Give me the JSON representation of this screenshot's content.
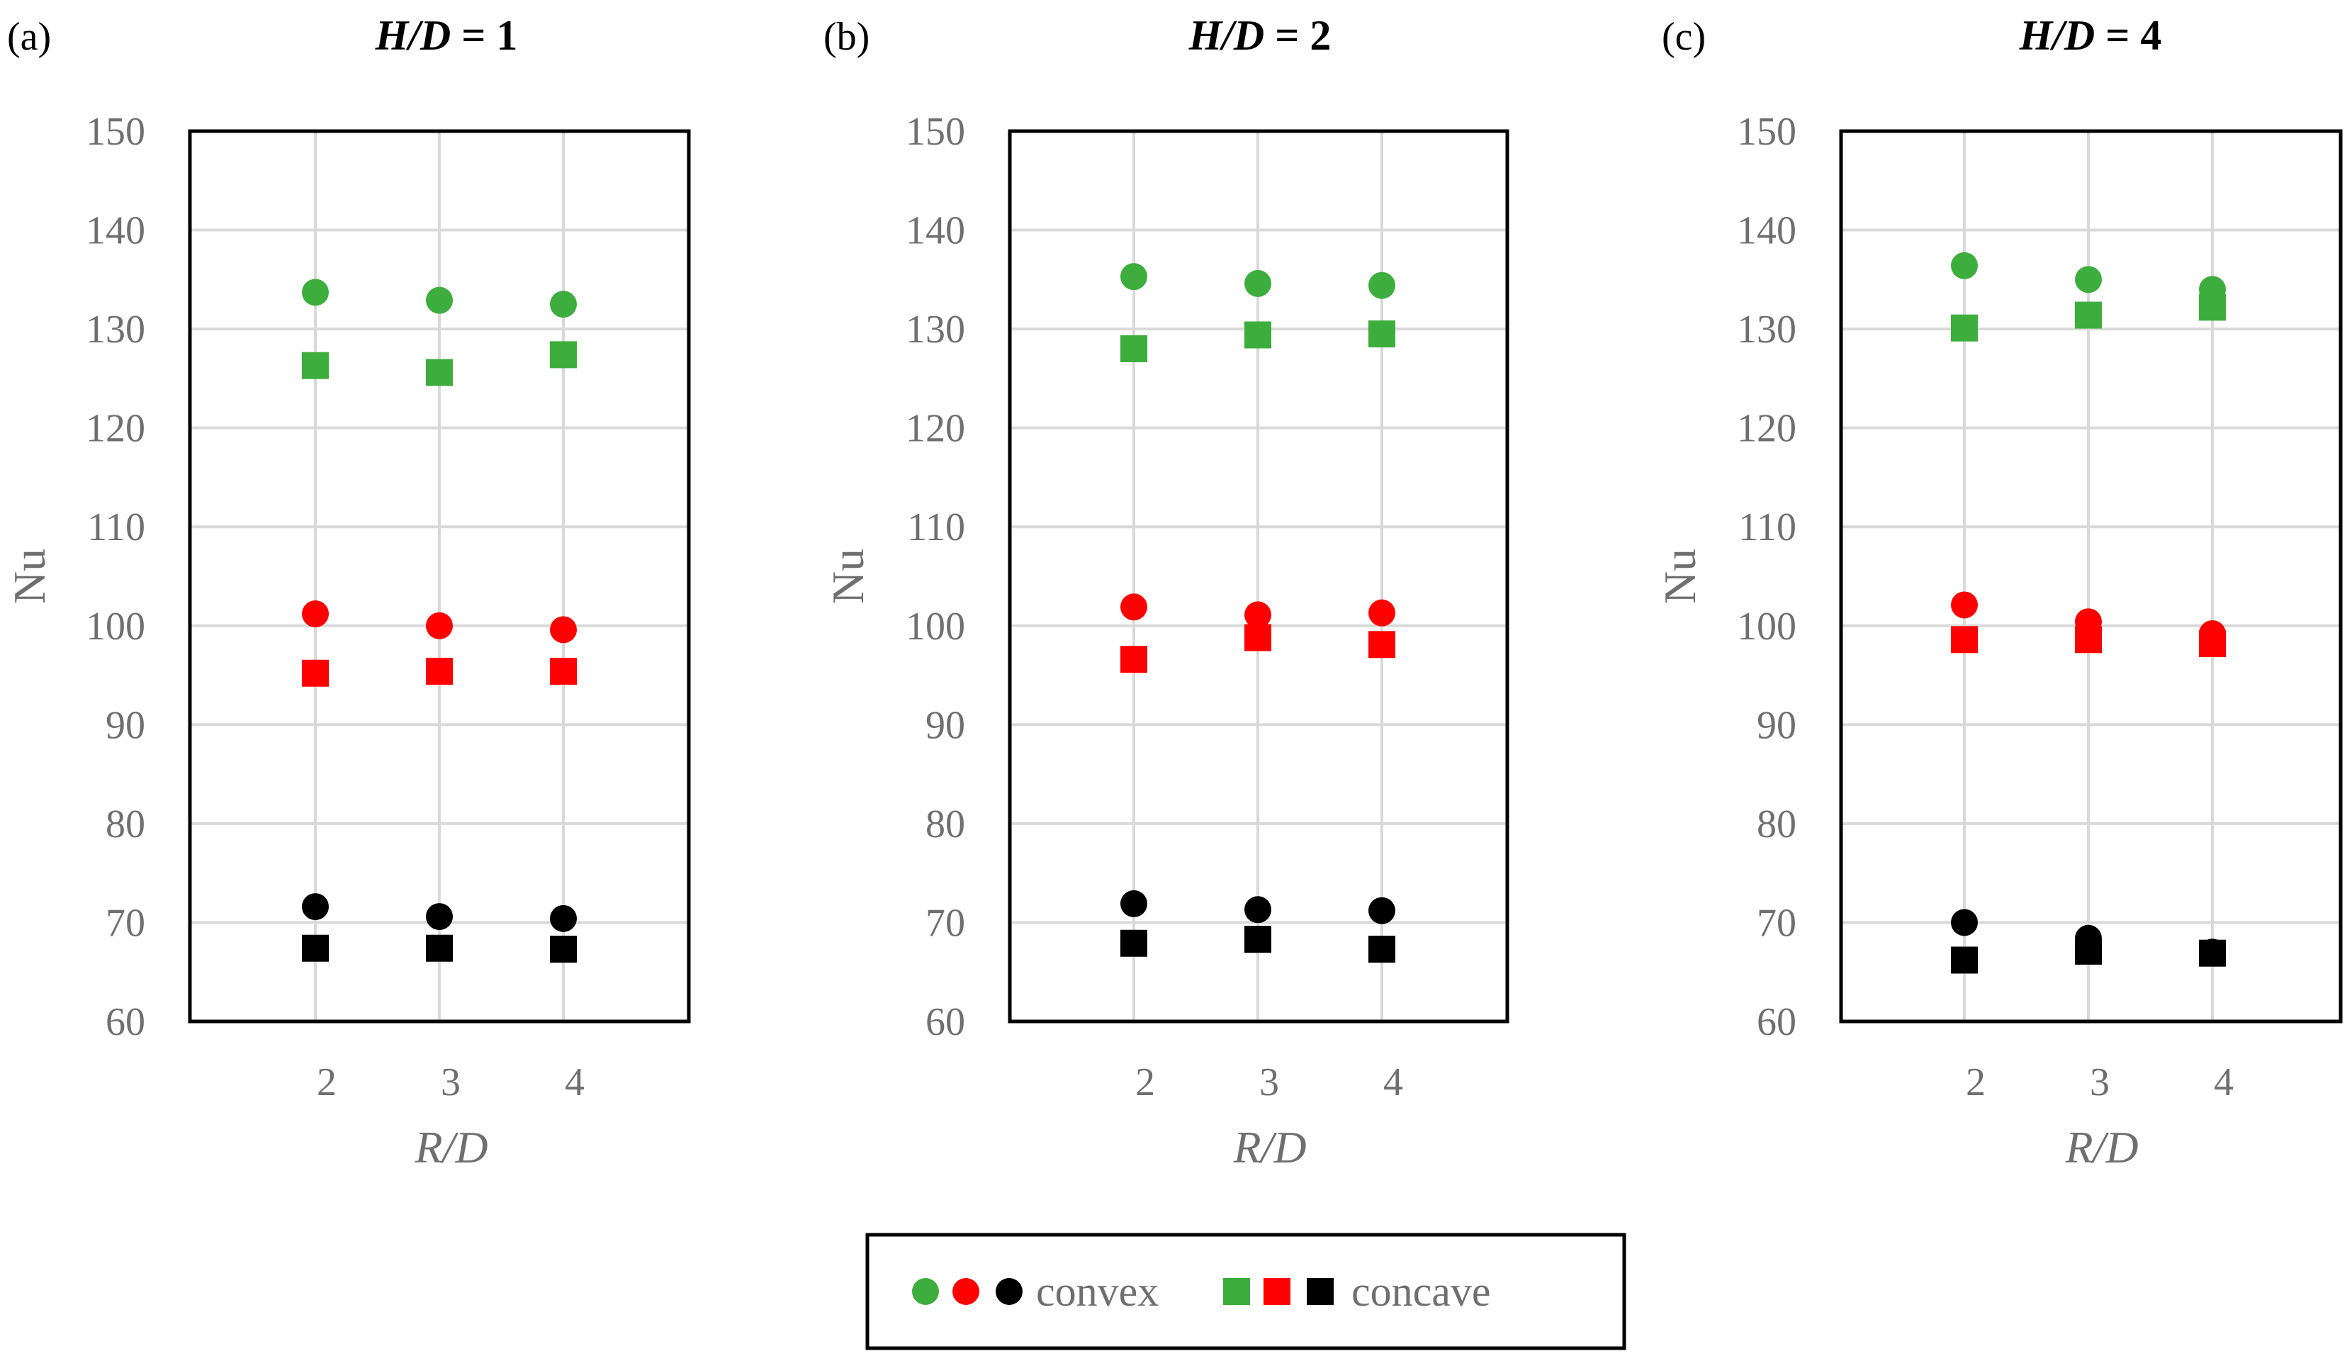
{
  "colors": {
    "h100": "#3dad3d",
    "h50": "#ff0000",
    "h0": "#000000",
    "grid": "#d9d9d9",
    "tick": "#6f6f6f"
  },
  "chart_data": [
    {
      "type": "scatter",
      "panel_label": "(a)",
      "title": "H/D = 1",
      "title_italic": "H/D",
      "title_rest": " = 1",
      "xlabel": "R/D",
      "ylabel": "Nu",
      "x": [
        2,
        3,
        4
      ],
      "ylim": [
        60,
        150
      ],
      "yticks": [
        "150",
        "140",
        "130",
        "120",
        "110",
        "100",
        "90",
        "80",
        "70",
        "60"
      ],
      "xticks": [
        "2",
        "3",
        "4"
      ],
      "series": [
        {
          "name": "convex",
          "color": "h100",
          "marker": "circle",
          "values": [
            133.7,
            132.9,
            132.5
          ]
        },
        {
          "name": "convex",
          "color": "h50",
          "marker": "circle",
          "values": [
            101.2,
            100.0,
            99.6
          ]
        },
        {
          "name": "convex",
          "color": "h0",
          "marker": "circle",
          "values": [
            71.6,
            70.6,
            70.4
          ]
        },
        {
          "name": "concave",
          "color": "h100",
          "marker": "square",
          "values": [
            126.3,
            125.6,
            127.4
          ]
        },
        {
          "name": "concave",
          "color": "h50",
          "marker": "square",
          "values": [
            95.2,
            95.4,
            95.4
          ]
        },
        {
          "name": "concave",
          "color": "h0",
          "marker": "square",
          "values": [
            67.4,
            67.4,
            67.3
          ]
        }
      ]
    },
    {
      "type": "scatter",
      "panel_label": "(b)",
      "title": "H/D = 2",
      "title_italic": "H/D",
      "title_rest": " = 2",
      "xlabel": "R/D",
      "ylabel": "Nu",
      "x": [
        2,
        3,
        4
      ],
      "ylim": [
        60,
        150
      ],
      "yticks": [
        "150",
        "140",
        "130",
        "120",
        "110",
        "100",
        "90",
        "80",
        "70",
        "60"
      ],
      "xticks": [
        "2",
        "3",
        "4"
      ],
      "series": [
        {
          "name": "convex",
          "color": "h100",
          "marker": "circle",
          "values": [
            135.3,
            134.6,
            134.4
          ]
        },
        {
          "name": "convex",
          "color": "h50",
          "marker": "circle",
          "values": [
            101.9,
            101.1,
            101.3
          ]
        },
        {
          "name": "convex",
          "color": "h0",
          "marker": "circle",
          "values": [
            71.9,
            71.3,
            71.2
          ]
        },
        {
          "name": "concave",
          "color": "h100",
          "marker": "square",
          "values": [
            128.0,
            129.4,
            129.5
          ]
        },
        {
          "name": "concave",
          "color": "h50",
          "marker": "square",
          "values": [
            96.6,
            98.8,
            98.1
          ]
        },
        {
          "name": "concave",
          "color": "h0",
          "marker": "square",
          "values": [
            67.9,
            68.3,
            67.3
          ]
        }
      ]
    },
    {
      "type": "scatter",
      "panel_label": "(c)",
      "title": "H/D = 4",
      "title_italic": "H/D",
      "title_rest": " = 4",
      "xlabel": "R/D",
      "ylabel": "Nu",
      "x": [
        2,
        3,
        4
      ],
      "ylim": [
        60,
        150
      ],
      "yticks": [
        "150",
        "140",
        "130",
        "120",
        "110",
        "100",
        "90",
        "80",
        "70",
        "60"
      ],
      "xticks": [
        "2",
        "3",
        "4"
      ],
      "series": [
        {
          "name": "convex",
          "color": "h100",
          "marker": "circle",
          "values": [
            136.4,
            135.0,
            134.0
          ]
        },
        {
          "name": "convex",
          "color": "h50",
          "marker": "circle",
          "values": [
            102.1,
            100.4,
            99.2
          ]
        },
        {
          "name": "convex",
          "color": "h0",
          "marker": "circle",
          "values": [
            70.0,
            68.4,
            67.0
          ]
        },
        {
          "name": "concave",
          "color": "h100",
          "marker": "square",
          "values": [
            130.1,
            131.4,
            132.2
          ]
        },
        {
          "name": "concave",
          "color": "h50",
          "marker": "square",
          "values": [
            98.6,
            98.6,
            98.2
          ]
        },
        {
          "name": "concave",
          "color": "h0",
          "marker": "square",
          "values": [
            66.2,
            67.1,
            66.9
          ]
        }
      ]
    }
  ],
  "legend": {
    "convex_label": "convex",
    "concave_label": "concave",
    "colors": [
      "h100",
      "h50",
      "h0"
    ]
  }
}
